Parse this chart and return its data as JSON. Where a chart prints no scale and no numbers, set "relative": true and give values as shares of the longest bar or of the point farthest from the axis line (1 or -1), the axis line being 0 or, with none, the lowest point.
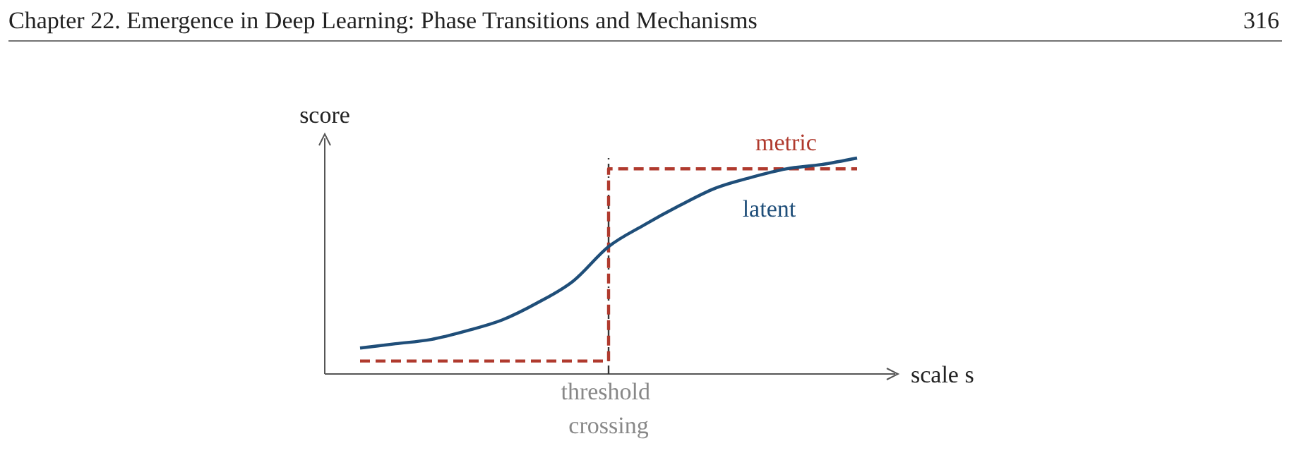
{
  "chart_data": {
    "type": "line",
    "title": "Chapter 22.  Emergence in Deep Learning: Phase Transitions and Mechanisms",
    "annotations": [
      "316",
      "threshold crossing"
    ],
    "xlabel": "scale s",
    "ylabel": "score",
    "relative": true,
    "categories": [
      null,
      null,
      null,
      null,
      null,
      null,
      null,
      null,
      null,
      null,
      null,
      null,
      null,
      null,
      null
    ],
    "series": [
      {
        "name": "metric",
        "type": "step",
        "color": "#b03a2e",
        "line_style": "dashed",
        "values": [
          0.06,
          0.06,
          0.06,
          0.06,
          0.06,
          0.06,
          0.06,
          0.95,
          0.95,
          0.95,
          0.95,
          0.95,
          0.95,
          0.95,
          0.95
        ]
      },
      {
        "name": "latent",
        "type": "line",
        "color": "#1f4e79",
        "line_style": "solid",
        "values": [
          0.12,
          0.14,
          0.16,
          0.2,
          0.25,
          0.33,
          0.43,
          0.59,
          0.69,
          0.78,
          0.86,
          0.91,
          0.95,
          0.97,
          1
        ]
      }
    ],
    "marker": "none"
  }
}
